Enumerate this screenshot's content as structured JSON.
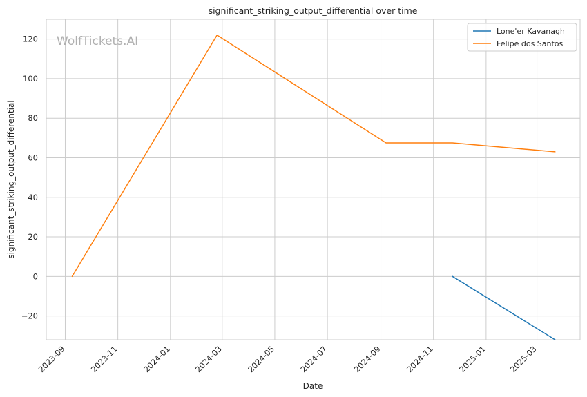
{
  "chart_data": {
    "type": "line",
    "title": "significant_striking_output_differential over time",
    "xlabel": "Date",
    "ylabel": "significant_striking_output_differential",
    "watermark": "WolfTickets.AI",
    "x_ticks": [
      "2023-09",
      "2023-11",
      "2024-01",
      "2024-03",
      "2024-05",
      "2024-07",
      "2024-09",
      "2024-11",
      "2025-01",
      "2025-03"
    ],
    "y_ticks": [
      -20,
      0,
      20,
      40,
      60,
      80,
      100,
      120
    ],
    "y_tick_labels": [
      "−20",
      "0",
      "20",
      "40",
      "60",
      "80",
      "100",
      "120"
    ],
    "xlim": [
      "2023-08-10",
      "2025-04-20"
    ],
    "ylim": [
      -32,
      130
    ],
    "grid": true,
    "legend_position": "top-right",
    "series": [
      {
        "name": "Lone'er Kavanagh",
        "color": "#1f77b4",
        "points": [
          {
            "x": "2024-11-23",
            "y": 0
          },
          {
            "x": "2025-03-22",
            "y": -32
          }
        ]
      },
      {
        "name": "Felipe dos Santos",
        "color": "#ff7f0e",
        "points": [
          {
            "x": "2023-09-09",
            "y": 0
          },
          {
            "x": "2024-02-24",
            "y": 122
          },
          {
            "x": "2024-09-07",
            "y": 67.5
          },
          {
            "x": "2024-11-23",
            "y": 67.5
          },
          {
            "x": "2025-03-22",
            "y": 63
          }
        ]
      }
    ]
  }
}
